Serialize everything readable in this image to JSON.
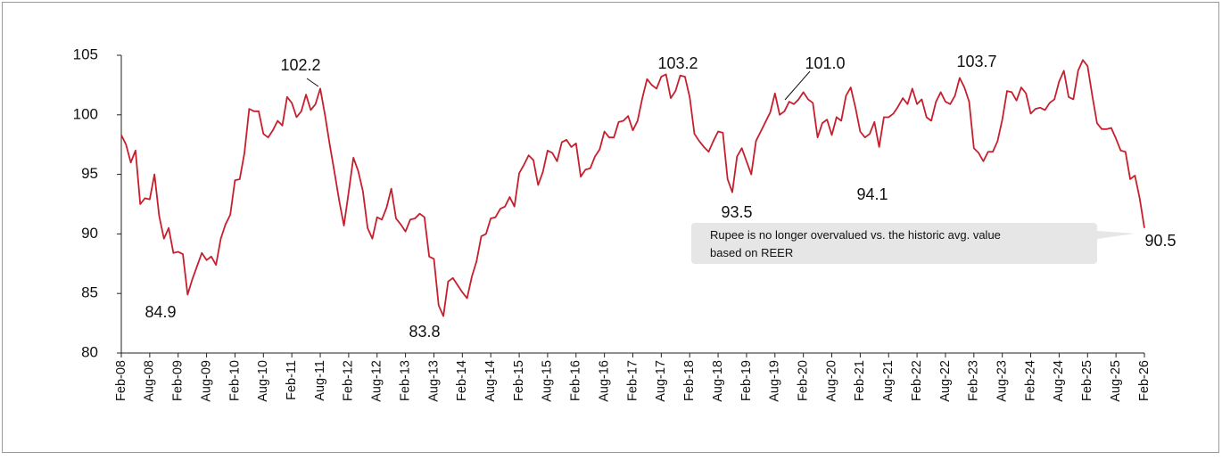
{
  "chart_data": {
    "type": "line",
    "color": "#c61f2e",
    "categories": [
      "Feb-08",
      null,
      null,
      null,
      null,
      null,
      "Aug-08",
      null,
      null,
      null,
      null,
      null,
      "Feb-09",
      null,
      null,
      null,
      null,
      null,
      "Aug-09",
      null,
      null,
      null,
      null,
      null,
      "Feb-10",
      null,
      null,
      null,
      null,
      null,
      "Aug-10",
      null,
      null,
      null,
      null,
      null,
      "Feb-11",
      null,
      null,
      null,
      null,
      null,
      "Aug-11",
      null,
      null,
      null,
      null,
      null,
      "Feb-12",
      null,
      null,
      null,
      null,
      null,
      "Aug-12",
      null,
      null,
      null,
      null,
      null,
      "Feb-13",
      null,
      null,
      null,
      null,
      null,
      "Aug-13",
      null,
      null,
      null,
      null,
      null,
      "Feb-14",
      null,
      null,
      null,
      null,
      null,
      "Aug-14",
      null,
      null,
      null,
      null,
      null,
      "Feb-15",
      null,
      null,
      null,
      null,
      null,
      "Aug-15",
      null,
      null,
      null,
      null,
      null,
      "Feb-16",
      null,
      null,
      null,
      null,
      null,
      "Aug-16",
      null,
      null,
      null,
      null,
      null,
      "Feb-17",
      null,
      null,
      null,
      null,
      null,
      "Aug-17",
      null,
      null,
      null,
      null,
      null,
      "Feb-18",
      null,
      null,
      null,
      null,
      null,
      "Aug-18",
      null,
      null,
      null,
      null,
      null,
      "Feb-19",
      null,
      null,
      null,
      null,
      null,
      "Aug-19",
      null,
      null,
      null,
      null,
      null,
      "Feb-20",
      null,
      null,
      null,
      null,
      null,
      "Aug-20",
      null,
      null,
      null,
      null,
      null,
      "Feb-21",
      null,
      null,
      null,
      null,
      null,
      "Aug-21",
      null,
      null,
      null,
      null,
      null,
      "Feb-22",
      null,
      null,
      null,
      null,
      null,
      "Aug-22",
      null,
      null,
      null,
      null,
      null,
      "Feb-23",
      null,
      null,
      null,
      null,
      null,
      "Aug-23",
      null,
      null,
      null,
      null,
      null,
      "Feb-24",
      null,
      null,
      null,
      null,
      null,
      "Aug-24",
      null,
      null,
      null,
      null,
      null,
      "Feb-25",
      null,
      null,
      null,
      null,
      null,
      "Aug-25",
      null,
      null,
      null,
      null,
      null,
      "Feb-26"
    ],
    "values": [
      98.3,
      97.5,
      96,
      97,
      92.5,
      93,
      92.9,
      95,
      91.5,
      89.6,
      90.5,
      88.4,
      88.5,
      88.3,
      84.9,
      86.2,
      87.3,
      88.4,
      87.8,
      88.1,
      87.4,
      89.6,
      90.8,
      91.6,
      94.5,
      94.6,
      96.8,
      100.5,
      100.3,
      100.3,
      98.4,
      98.1,
      98.7,
      99.5,
      99.1,
      101.5,
      101.0,
      99.8,
      100.3,
      101.7,
      100.4,
      100.9,
      102.2,
      100.0,
      97.5,
      95.2,
      92.8,
      90.7,
      93.5,
      96.4,
      95.3,
      93.6,
      90.5,
      89.6,
      91.4,
      91.2,
      92.2,
      93.8,
      91.3,
      90.8,
      90.2,
      91.2,
      91.3,
      91.7,
      91.4,
      88.1,
      87.9,
      84.0,
      83.1,
      86.0,
      86.3,
      85.7,
      85.1,
      84.6,
      86.4,
      87.7,
      89.8,
      90.0,
      91.3,
      91.4,
      92.1,
      92.3,
      93.1,
      92.3,
      95.1,
      95.8,
      96.6,
      96.2,
      94.1,
      95.2,
      97.0,
      96.8,
      96.1,
      97.7,
      97.9,
      97.3,
      97.6,
      94.8,
      95.4,
      95.5,
      96.5,
      97.1,
      98.6,
      98.1,
      98.1,
      99.4,
      99.5,
      99.9,
      98.7,
      99.5,
      101.4,
      103.0,
      102.5,
      102.2,
      103.2,
      103.4,
      101.4,
      102.0,
      103.3,
      103.2,
      101.5,
      98.4,
      97.8,
      97.3,
      96.9,
      97.8,
      98.6,
      98.5,
      94.6,
      93.5,
      96.5,
      97.2,
      96.1,
      95.0,
      97.8,
      98.6,
      99.4,
      100.2,
      101.8,
      100.0,
      100.3,
      101.1,
      100.9,
      101.3,
      101.9,
      101.3,
      101.0,
      98.1,
      99.3,
      99.6,
      98.3,
      99.8,
      99.5,
      101.6,
      102.3,
      100.6,
      98.6,
      98.1,
      98.4,
      99.4,
      97.3,
      99.8,
      99.8,
      100.1,
      100.7,
      101.4,
      100.9,
      102.2,
      100.9,
      101.3,
      99.8,
      99.5,
      101.1,
      101.9,
      101.1,
      100.9,
      101.6,
      103.1,
      102.3,
      101.1,
      97.2,
      96.8,
      96.1,
      96.9,
      96.9,
      97.8,
      99.6,
      102.0,
      101.9,
      101.2,
      102.3,
      101.8,
      100.1,
      100.5,
      100.6,
      100.4,
      101.0,
      101.3,
      102.8,
      103.7,
      101.5,
      101.3,
      103.7,
      104.6,
      104.1,
      101.6,
      99.3,
      98.8,
      98.8,
      98.9,
      98.0,
      97.0,
      96.9,
      94.6,
      94.9,
      93.0,
      90.5
    ],
    "ylim": [
      80,
      105
    ],
    "yticks": [
      80,
      85,
      90,
      95,
      100,
      105
    ],
    "annotations": [
      "84.9",
      "102.2",
      "83.8",
      "103.2",
      "93.5",
      "101.0",
      "94.1",
      "103.7",
      "90.5"
    ],
    "callout": [
      "Rupee is no longer overvalued vs. the historic avg. value",
      "based on REER"
    ]
  }
}
